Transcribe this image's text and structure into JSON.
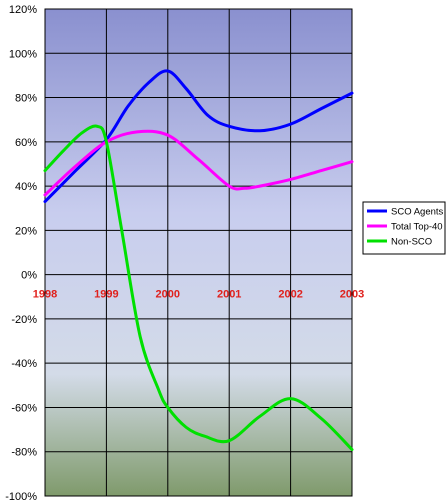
{
  "chart_data": {
    "type": "line",
    "title": "",
    "xlabel": "",
    "ylabel": "",
    "x": [
      "1998",
      "1999",
      "2000",
      "2001",
      "2002",
      "2003"
    ],
    "ylim": [
      -100,
      120
    ],
    "yticks": [
      120,
      100,
      80,
      60,
      40,
      20,
      0,
      -20,
      -40,
      -60,
      -80,
      -100
    ],
    "ytick_labels": [
      "120%",
      "100%",
      "80%",
      "60%",
      "40%",
      "20%",
      "0%",
      "-20%",
      "-40%",
      "-60%",
      "-80%",
      "-100%"
    ],
    "xtick_color": "#e0201c",
    "grid": true,
    "legend_position": "right",
    "series": [
      {
        "name": "SCO Agents",
        "color": "#0000ff",
        "points": [
          [
            1998.0,
            33
          ],
          [
            1998.5,
            47
          ],
          [
            1999.0,
            61
          ],
          [
            1999.35,
            76
          ],
          [
            1999.7,
            87
          ],
          [
            2000.0,
            92
          ],
          [
            2000.3,
            84
          ],
          [
            2000.65,
            72
          ],
          [
            2001.0,
            67
          ],
          [
            2001.5,
            65
          ],
          [
            2002.0,
            68
          ],
          [
            2002.5,
            75
          ],
          [
            2003.0,
            82
          ]
        ]
      },
      {
        "name": "Total Top-40",
        "color": "#ff00ff",
        "points": [
          [
            1998.0,
            36
          ],
          [
            1998.5,
            49
          ],
          [
            1999.0,
            60
          ],
          [
            1999.5,
            64.5
          ],
          [
            2000.0,
            63
          ],
          [
            2000.5,
            52
          ],
          [
            2001.0,
            40
          ],
          [
            2001.25,
            39
          ],
          [
            2001.5,
            40
          ],
          [
            2002.0,
            43
          ],
          [
            2002.5,
            47
          ],
          [
            2003.0,
            51
          ]
        ]
      },
      {
        "name": "Non-SCO",
        "color": "#00e000",
        "points": [
          [
            1998.0,
            47
          ],
          [
            1998.3,
            56
          ],
          [
            1998.6,
            64
          ],
          [
            1998.85,
            67
          ],
          [
            1999.0,
            60
          ],
          [
            1999.25,
            20
          ],
          [
            1999.55,
            -28
          ],
          [
            1999.85,
            -52
          ],
          [
            2000.0,
            -60
          ],
          [
            2000.3,
            -69
          ],
          [
            2000.6,
            -73
          ],
          [
            2001.0,
            -75
          ],
          [
            2001.5,
            -64
          ],
          [
            2002.0,
            -56
          ],
          [
            2002.5,
            -65
          ],
          [
            2003.0,
            -79
          ]
        ]
      }
    ]
  }
}
